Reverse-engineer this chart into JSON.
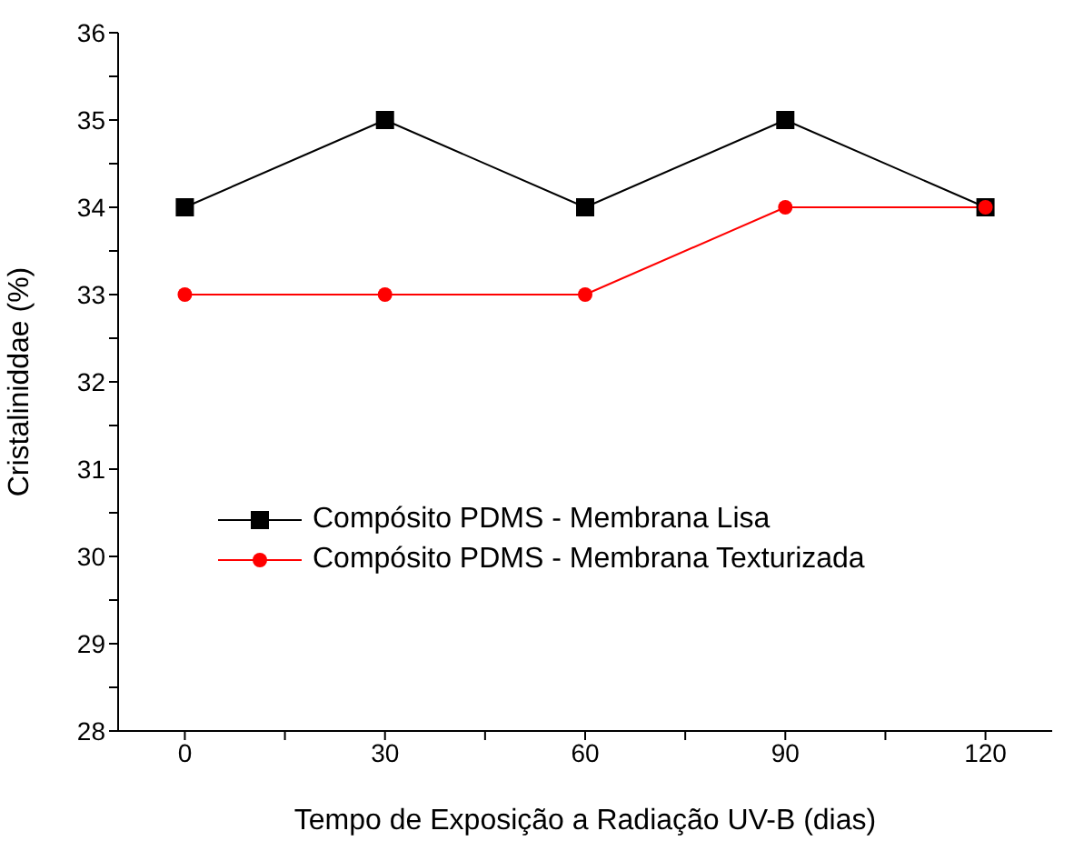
{
  "chart_data": {
    "type": "line",
    "xlabel": "Tempo de Exposição a Radiação UV-B (dias)",
    "ylabel": "Cristaliniddae (%)",
    "x": [
      0,
      30,
      60,
      90,
      120
    ],
    "series": [
      {
        "name": "Compósito PDMS - Membrana Lisa",
        "color": "#000000",
        "marker": "square",
        "values": [
          34,
          35,
          34,
          35,
          34
        ]
      },
      {
        "name": "Compósito PDMS - Membrana Texturizada",
        "color": "#ff0000",
        "marker": "circle",
        "values": [
          33,
          33,
          33,
          34,
          34
        ]
      }
    ],
    "xlim": [
      -10,
      130
    ],
    "xticks": [
      0,
      {
        "value": 15,
        "label": null
      },
      30,
      {
        "value": 45,
        "label": null
      },
      60,
      {
        "value": 75,
        "label": null
      },
      90,
      {
        "value": 105,
        "label": null
      },
      120
    ],
    "ylim": [
      28,
      36
    ],
    "yticks": [
      28,
      {
        "value": 28.5,
        "label": null
      },
      29,
      {
        "value": 29.5,
        "label": null
      },
      30,
      {
        "value": 30.5,
        "label": null
      },
      31,
      {
        "value": 31.5,
        "label": null
      },
      32,
      {
        "value": 32.5,
        "label": null
      },
      33,
      {
        "value": 33.5,
        "label": null
      },
      34,
      {
        "value": 34.5,
        "label": null
      },
      35,
      {
        "value": 35.5,
        "label": null
      },
      36
    ],
    "grid": false,
    "legend": "left",
    "line_style": "solid"
  }
}
